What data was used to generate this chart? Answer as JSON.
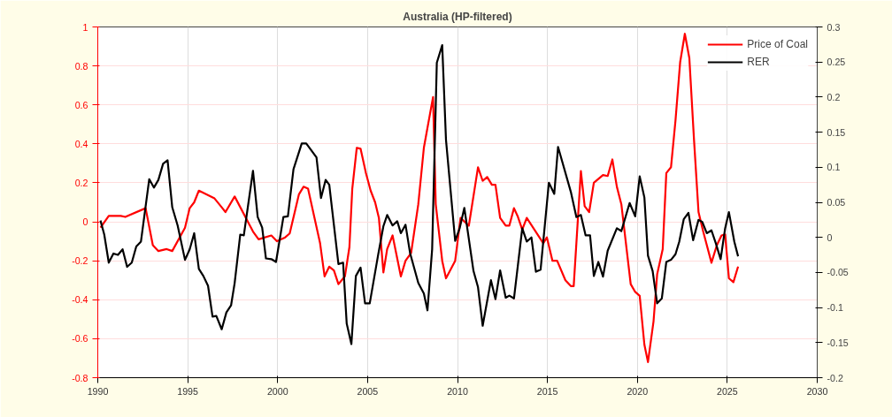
{
  "chart_data": {
    "type": "line",
    "title": "Australia (HP-filtered)",
    "xlim": [
      1990,
      2030
    ],
    "xticks": [
      1990,
      1995,
      2000,
      2005,
      2010,
      2015,
      2020,
      2025,
      2030
    ],
    "ylim": [
      -0.8,
      1
    ],
    "yticks": [
      -0.8,
      -0.6,
      -0.4,
      -0.2,
      0,
      0.2,
      0.4,
      0.6,
      0.8,
      1
    ],
    "y2lim": [
      -0.2,
      0.3
    ],
    "y2ticks": [
      -0.2,
      -0.15,
      -0.1,
      -0.05,
      0,
      0.05,
      0.1,
      0.15,
      0.2,
      0.25,
      0.3
    ],
    "grid": true,
    "legend": "top right",
    "line_style": "solid",
    "marker": "none",
    "series": [
      {
        "name": "Price of Coal",
        "color": "#ff0000",
        "axis": "y",
        "x": [
          1990.15,
          1990.61,
          1991.28,
          1991.53,
          1992.66,
          1993.06,
          1993.37,
          1993.83,
          1994.14,
          1994.85,
          1995.11,
          1995.36,
          1995.62,
          1996.49,
          1996.84,
          1997.1,
          1997.61,
          1998.63,
          1998.94,
          1999.65,
          1999.96,
          2000.42,
          2000.67,
          2001.18,
          2001.44,
          2001.69,
          2002.36,
          2002.61,
          2002.87,
          2003.13,
          2003.38,
          2003.74,
          2003.99,
          2004.15,
          2004.4,
          2004.61,
          2004.91,
          2005.17,
          2005.42,
          2005.63,
          2005.88,
          2006.09,
          2006.39,
          2006.85,
          2007.11,
          2007.42,
          2007.82,
          2008.13,
          2008.64,
          2008.79,
          2009.15,
          2009.36,
          2009.87,
          2010.17,
          2010.63,
          2011.14,
          2011.4,
          2011.65,
          2011.91,
          2012.11,
          2012.37,
          2012.68,
          2012.88,
          2013.14,
          2013.34,
          2013.6,
          2013.85,
          2014.77,
          2014.97,
          2015.28,
          2015.54,
          2016.0,
          2016.3,
          2016.46,
          2016.86,
          2017.07,
          2017.32,
          2017.58,
          2018.09,
          2018.35,
          2018.61,
          2018.86,
          2019.11,
          2019.63,
          2019.88,
          2020.13,
          2020.39,
          2020.59,
          2020.9,
          2021.1,
          2021.41,
          2021.61,
          2021.87,
          2022.12,
          2022.38,
          2022.64,
          2022.89,
          2023.15,
          2023.4,
          2023.66,
          2024.12,
          2024.42,
          2024.68,
          2024.88,
          2025.09,
          2025.34,
          2025.6
        ],
        "values": [
          -0.03,
          0.03,
          0.03,
          0.025,
          0.07,
          -0.12,
          -0.15,
          -0.14,
          -0.15,
          -0.03,
          0.07,
          0.1,
          0.16,
          0.12,
          0.08,
          0.05,
          0.13,
          -0.05,
          -0.09,
          -0.07,
          -0.1,
          -0.08,
          -0.06,
          0.14,
          0.18,
          0.17,
          -0.11,
          -0.28,
          -0.23,
          -0.25,
          -0.32,
          -0.28,
          -0.13,
          0.17,
          0.38,
          0.375,
          0.25,
          0.16,
          0.1,
          0.02,
          -0.26,
          -0.14,
          -0.07,
          -0.28,
          -0.2,
          -0.16,
          0.09,
          0.38,
          0.64,
          0.09,
          -0.2,
          -0.29,
          -0.2,
          0.02,
          -0.02,
          0.28,
          0.21,
          0.23,
          0.19,
          0.19,
          0.02,
          -0.02,
          -0.02,
          0.07,
          0.03,
          -0.04,
          0.02,
          -0.11,
          -0.08,
          -0.2,
          -0.2,
          -0.3,
          -0.33,
          -0.33,
          0.26,
          0.08,
          0.05,
          0.2,
          0.24,
          0.235,
          0.32,
          0.18,
          0.09,
          -0.32,
          -0.36,
          -0.38,
          -0.63,
          -0.72,
          -0.51,
          -0.27,
          -0.14,
          0.25,
          0.28,
          0.52,
          0.82,
          0.965,
          0.84,
          0.42,
          0.05,
          -0.05,
          -0.21,
          -0.12,
          -0.07,
          -0.065,
          -0.29,
          -0.31,
          -0.23
        ]
      },
      {
        "name": "RER",
        "color": "#000000",
        "axis": "y2",
        "x": [
          1990.15,
          1990.36,
          1990.61,
          1990.87,
          1991.12,
          1991.38,
          1991.63,
          1991.89,
          1992.14,
          1992.4,
          1992.86,
          1993.12,
          1993.37,
          1993.63,
          1993.88,
          1994.14,
          1994.44,
          1994.85,
          1995.11,
          1995.36,
          1995.62,
          1995.87,
          1996.13,
          1996.38,
          1996.59,
          1996.89,
          1997.15,
          1997.41,
          1997.61,
          1997.92,
          1998.12,
          1998.63,
          1998.89,
          1999.14,
          1999.35,
          1999.65,
          1999.91,
          2000.32,
          2000.57,
          2000.88,
          2001.34,
          2001.59,
          2002.16,
          2002.41,
          2002.67,
          2002.87,
          2003.38,
          2003.64,
          2003.84,
          2004.1,
          2004.35,
          2004.61,
          2004.86,
          2005.12,
          2005.58,
          2005.88,
          2006.09,
          2006.39,
          2006.65,
          2006.85,
          2007.11,
          2007.36,
          2007.82,
          2008.13,
          2008.33,
          2008.59,
          2008.85,
          2009.15,
          2009.36,
          2009.87,
          2010.12,
          2010.38,
          2010.89,
          2011.14,
          2011.4,
          2011.86,
          2012.11,
          2012.37,
          2012.68,
          2012.88,
          2013.14,
          2013.6,
          2013.85,
          2014.11,
          2014.36,
          2014.62,
          2015.08,
          2015.38,
          2015.59,
          2016.3,
          2016.61,
          2016.86,
          2017.12,
          2017.37,
          2017.58,
          2017.83,
          2018.09,
          2018.35,
          2018.86,
          2019.11,
          2019.57,
          2019.88,
          2020.13,
          2020.39,
          2020.59,
          2020.85,
          2021.1,
          2021.36,
          2021.61,
          2021.87,
          2022.12,
          2022.33,
          2022.58,
          2022.84,
          2023.1,
          2023.4,
          2023.61,
          2023.86,
          2024.12,
          2024.37,
          2024.63,
          2024.88,
          2025.09,
          2025.39,
          2025.6
        ],
        "values": [
          0.024,
          0.004,
          -0.036,
          -0.023,
          -0.025,
          -0.017,
          -0.042,
          -0.036,
          -0.013,
          -0.006,
          0.083,
          0.071,
          0.082,
          0.105,
          0.11,
          0.043,
          0.017,
          -0.032,
          -0.017,
          0.006,
          -0.045,
          -0.055,
          -0.069,
          -0.113,
          -0.112,
          -0.131,
          -0.107,
          -0.097,
          -0.065,
          0.004,
          0.003,
          0.095,
          0.029,
          0.014,
          -0.03,
          -0.031,
          -0.035,
          0.029,
          0.03,
          0.097,
          0.134,
          0.134,
          0.114,
          0.056,
          0.082,
          0.075,
          -0.038,
          -0.036,
          -0.123,
          -0.152,
          -0.055,
          -0.043,
          -0.094,
          -0.094,
          -0.026,
          0.016,
          0.032,
          0.017,
          0.023,
          0.006,
          0.018,
          -0.022,
          -0.065,
          -0.08,
          -0.104,
          -0.017,
          0.249,
          0.274,
          0.139,
          -0.005,
          0.013,
          0.042,
          -0.048,
          -0.071,
          -0.126,
          -0.061,
          -0.088,
          -0.047,
          -0.086,
          -0.083,
          -0.087,
          0.013,
          -0.006,
          0.0,
          -0.049,
          -0.046,
          0.078,
          0.062,
          0.129,
          0.065,
          0.029,
          0.032,
          0.003,
          0.003,
          -0.055,
          -0.035,
          -0.056,
          -0.019,
          0.013,
          0.009,
          0.049,
          0.03,
          0.087,
          0.057,
          -0.026,
          -0.048,
          -0.094,
          -0.087,
          -0.035,
          -0.032,
          -0.024,
          -0.006,
          0.026,
          0.035,
          -0.004,
          0.025,
          0.022,
          0.006,
          0.01,
          -0.009,
          -0.031,
          0.013,
          0.036,
          -0.006,
          -0.027
        ]
      }
    ]
  }
}
